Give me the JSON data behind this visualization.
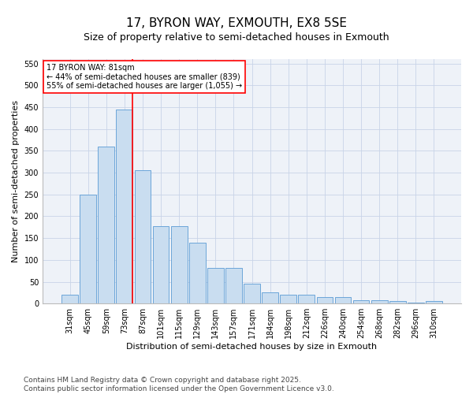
{
  "title": "17, BYRON WAY, EXMOUTH, EX8 5SE",
  "subtitle": "Size of property relative to semi-detached houses in Exmouth",
  "xlabel": "Distribution of semi-detached houses by size in Exmouth",
  "ylabel": "Number of semi-detached properties",
  "categories": [
    "31sqm",
    "45sqm",
    "59sqm",
    "73sqm",
    "87sqm",
    "101sqm",
    "115sqm",
    "129sqm",
    "143sqm",
    "157sqm",
    "171sqm",
    "184sqm",
    "198sqm",
    "212sqm",
    "226sqm",
    "240sqm",
    "254sqm",
    "268sqm",
    "282sqm",
    "296sqm",
    "310sqm"
  ],
  "values": [
    20,
    250,
    360,
    445,
    305,
    178,
    178,
    140,
    82,
    82,
    45,
    25,
    20,
    20,
    15,
    15,
    8,
    8,
    6,
    3,
    6
  ],
  "bar_color": "#c9ddf0",
  "bar_edge_color": "#5b9bd5",
  "grid_color": "#c8d4e8",
  "background_color": "#eef2f8",
  "property_line_color": "red",
  "property_bin_index": 3,
  "annotation_line1": "17 BYRON WAY: 81sqm",
  "annotation_line2": "← 44% of semi-detached houses are smaller (839)",
  "annotation_line3": "55% of semi-detached houses are larger (1,055) →",
  "ylim": [
    0,
    560
  ],
  "yticks": [
    0,
    50,
    100,
    150,
    200,
    250,
    300,
    350,
    400,
    450,
    500,
    550
  ],
  "footer_line1": "Contains HM Land Registry data © Crown copyright and database right 2025.",
  "footer_line2": "Contains public sector information licensed under the Open Government Licence v3.0.",
  "title_fontsize": 11,
  "subtitle_fontsize": 9,
  "tick_fontsize": 7,
  "ylabel_fontsize": 8,
  "xlabel_fontsize": 8,
  "annotation_fontsize": 7,
  "footer_fontsize": 6.5
}
